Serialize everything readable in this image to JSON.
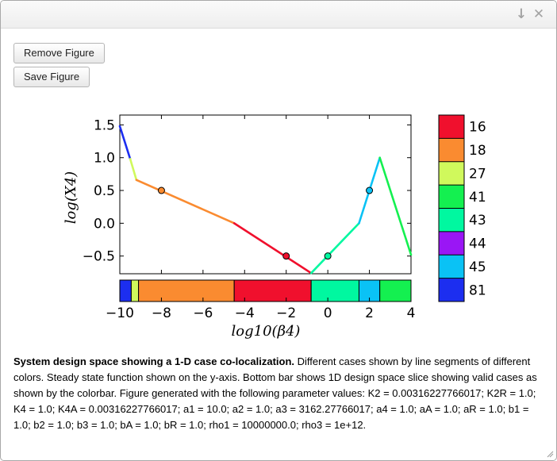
{
  "window": {
    "minimize_glyph": "↓",
    "close_glyph": "✕",
    "minimize_icon": "arrow-down-icon",
    "close_icon": "close-icon"
  },
  "buttons": {
    "remove_label": "Remove Figure",
    "save_label": "Save Figure"
  },
  "chart_data": {
    "type": "line",
    "title": "",
    "xlabel": "log10(β4)",
    "ylabel": "log(X4)",
    "xlim": [
      -10,
      4
    ],
    "ylim": [
      -0.77,
      1.65
    ],
    "x_ticks": [
      -10,
      -8,
      -6,
      -4,
      -2,
      0,
      2,
      4
    ],
    "y_ticks": [
      -0.5,
      0.0,
      0.5,
      1.0,
      1.5
    ],
    "x_tick_labels": [
      "−10",
      "−8",
      "−6",
      "−4",
      "−2",
      "0",
      "2",
      "4"
    ],
    "y_tick_labels": [
      "−0.5",
      "0.0",
      "0.5",
      "1.0",
      "1.5"
    ],
    "segments": [
      {
        "case": "81",
        "points": [
          [
            -10,
            1.48
          ],
          [
            -9.5,
            0.98
          ]
        ]
      },
      {
        "case": "27",
        "points": [
          [
            -9.5,
            0.98
          ],
          [
            -9.2,
            0.66
          ]
        ]
      },
      {
        "case": "18",
        "points": [
          [
            -9.2,
            0.66
          ],
          [
            -4.5,
            0.0
          ]
        ]
      },
      {
        "case": "16",
        "points": [
          [
            -4.5,
            0.0
          ],
          [
            -0.8,
            -0.76
          ]
        ]
      },
      {
        "case": "43",
        "points": [
          [
            -0.8,
            -0.76
          ],
          [
            1.5,
            0.0
          ]
        ]
      },
      {
        "case": "45",
        "points": [
          [
            1.5,
            0.0
          ],
          [
            2.5,
            1.0
          ]
        ]
      },
      {
        "case": "41",
        "points": [
          [
            2.5,
            1.0
          ],
          [
            4,
            -0.48
          ]
        ]
      }
    ],
    "markers": [
      {
        "case": "18",
        "x": -8,
        "y": 0.5
      },
      {
        "case": "16",
        "x": -2,
        "y": -0.5
      },
      {
        "case": "43",
        "x": 0,
        "y": -0.5
      },
      {
        "case": "45",
        "x": 2,
        "y": 0.5
      }
    ],
    "design_space_bar": [
      {
        "case": "81",
        "x0": -10,
        "x1": -9.45
      },
      {
        "case": "27",
        "x0": -9.45,
        "x1": -9.1
      },
      {
        "case": "18",
        "x0": -9.1,
        "x1": -4.5
      },
      {
        "case": "16",
        "x0": -4.5,
        "x1": -0.8
      },
      {
        "case": "43",
        "x0": -0.8,
        "x1": 1.5
      },
      {
        "case": "45",
        "x0": 1.5,
        "x1": 2.5
      },
      {
        "case": "41",
        "x0": 2.5,
        "x1": 4
      }
    ],
    "legend": [
      {
        "label": "16",
        "color": "#f0102d"
      },
      {
        "label": "18",
        "color": "#fa8b30"
      },
      {
        "label": "27",
        "color": "#d0f95c"
      },
      {
        "label": "41",
        "color": "#14f050"
      },
      {
        "label": "43",
        "color": "#00f8a0"
      },
      {
        "label": "44",
        "color": "#9a16f5"
      },
      {
        "label": "45",
        "color": "#0ac2f5"
      },
      {
        "label": "81",
        "color": "#1c2ef0"
      }
    ],
    "legend_placement": "right",
    "grid": false
  },
  "caption": {
    "bold": "System design space showing a 1-D case co-localization.",
    "text": " Different cases shown by line segments of different colors. Steady state function shown on the y-axis. Bottom bar shows 1D design space slice showing valid cases as shown by the colorbar. Figure generated with the following parameter values: K2 = 0.00316227766017; K2R = 1.0; K4 = 1.0; K4A = 0.00316227766017; a1 = 10.0; a2 = 1.0; a3 = 3162.27766017; a4 = 1.0; aA = 1.0; aR = 1.0; b1 = 1.0; b2 = 1.0; b3 = 1.0; bA = 1.0; bR = 1.0; rho1 = 10000000.0; rho3 = 1e+12."
  }
}
